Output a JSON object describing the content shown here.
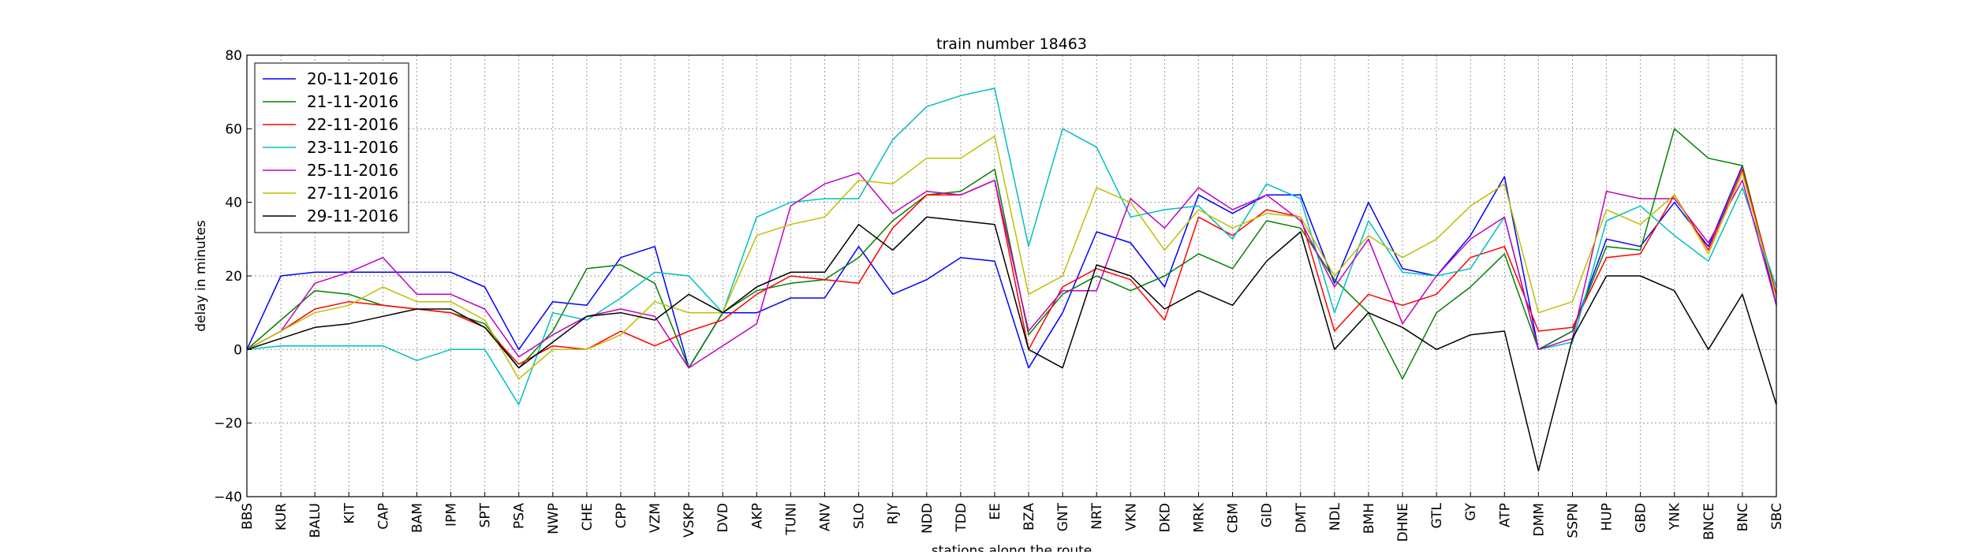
{
  "chart_data": {
    "type": "line",
    "title": "train number 18463",
    "xlabel": "stations along the route",
    "ylabel": "delay in minutes",
    "ylim": [
      -40,
      80
    ],
    "yticks": [
      -40,
      -20,
      0,
      20,
      40,
      60,
      80
    ],
    "grid": true,
    "legend_position": "top-left",
    "categories": [
      "BBS",
      "KUR",
      "BALU",
      "KIT",
      "CAP",
      "BAM",
      "IPM",
      "SPT",
      "PSA",
      "NWP",
      "CHE",
      "CPP",
      "VZM",
      "VSKP",
      "DVD",
      "AKP",
      "TUNI",
      "ANV",
      "SLO",
      "RJY",
      "NDD",
      "TDD",
      "EE",
      "BZA",
      "GNT",
      "NRT",
      "VKN",
      "DKD",
      "MRK",
      "CBM",
      "GID",
      "DMT",
      "NDL",
      "BMH",
      "DHNE",
      "GTL",
      "GY",
      "ATP",
      "DMM",
      "SSPN",
      "HUP",
      "GBD",
      "YNK",
      "BNCE",
      "BNC",
      "SBC"
    ],
    "series": [
      {
        "name": "20-11-2016",
        "color": "#0000ff",
        "values": [
          0,
          20,
          21,
          21,
          21,
          21,
          21,
          17,
          0,
          13,
          12,
          25,
          28,
          -5,
          10,
          10,
          14,
          14,
          28,
          15,
          19,
          25,
          24,
          -5,
          10,
          32,
          29,
          17,
          42,
          37,
          42,
          42,
          18,
          40,
          22,
          20,
          31,
          47,
          0,
          5,
          30,
          28,
          40,
          28,
          50,
          12
        ]
      },
      {
        "name": "21-11-2016",
        "color": "#008000",
        "values": [
          0,
          8,
          16,
          15,
          12,
          11,
          10,
          7,
          -5,
          5,
          22,
          23,
          18,
          -5,
          10,
          16,
          18,
          19,
          25,
          35,
          42,
          43,
          49,
          4,
          15,
          20,
          16,
          20,
          26,
          22,
          35,
          33,
          19,
          10,
          -8,
          10,
          17,
          26,
          0,
          5,
          28,
          27,
          60,
          52,
          50,
          14
        ]
      },
      {
        "name": "22-11-2016",
        "color": "#ff0000",
        "values": [
          0,
          5,
          11,
          13,
          12,
          11,
          10,
          6,
          -4,
          1,
          0,
          5,
          1,
          5,
          8,
          15,
          20,
          19,
          18,
          33,
          42,
          42,
          46,
          0,
          17,
          22,
          19,
          8,
          36,
          31,
          38,
          36,
          5,
          15,
          12,
          15,
          25,
          28,
          5,
          6,
          25,
          26,
          42,
          27,
          49,
          15
        ]
      },
      {
        "name": "23-11-2016",
        "color": "#00bfbf",
        "values": [
          0,
          1,
          1,
          1,
          1,
          -3,
          0,
          0,
          -15,
          10,
          8,
          14,
          21,
          20,
          10,
          36,
          40,
          41,
          41,
          57,
          66,
          69,
          71,
          28,
          60,
          55,
          36,
          38,
          39,
          30,
          45,
          41,
          10,
          35,
          21,
          20,
          22,
          36,
          0,
          2,
          35,
          39,
          31,
          24,
          44,
          17
        ]
      },
      {
        "name": "25-11-2016",
        "color": "#bf00bf",
        "values": [
          0,
          5,
          18,
          21,
          25,
          15,
          15,
          11,
          -2,
          4,
          9,
          11,
          9,
          -5,
          1,
          7,
          39,
          45,
          48,
          37,
          43,
          42,
          46,
          5,
          16,
          16,
          41,
          33,
          44,
          38,
          42,
          35,
          17,
          30,
          7,
          20,
          30,
          36,
          0,
          3,
          43,
          41,
          41,
          29,
          46,
          12
        ]
      },
      {
        "name": "27-11-2016",
        "color": "#bfbf00",
        "values": [
          0,
          5,
          10,
          12,
          17,
          13,
          13,
          8,
          -8,
          0,
          0,
          4,
          13,
          10,
          10,
          31,
          34,
          36,
          46,
          45,
          52,
          52,
          58,
          15,
          20,
          44,
          40,
          27,
          38,
          33,
          37,
          36,
          20,
          31,
          25,
          30,
          39,
          45,
          10,
          13,
          38,
          34,
          42,
          26,
          48,
          14
        ]
      },
      {
        "name": "29-11-2016",
        "color": "#000000",
        "values": [
          0,
          3,
          6,
          7,
          9,
          11,
          11,
          6,
          -5,
          2,
          9,
          10,
          8,
          15,
          10,
          17,
          21,
          21,
          34,
          27,
          36,
          35,
          34,
          0,
          -5,
          23,
          20,
          11,
          16,
          12,
          24,
          32,
          0,
          10,
          6,
          0,
          4,
          5,
          -33,
          3,
          20,
          20,
          16,
          0,
          15,
          -15
        ]
      }
    ]
  }
}
